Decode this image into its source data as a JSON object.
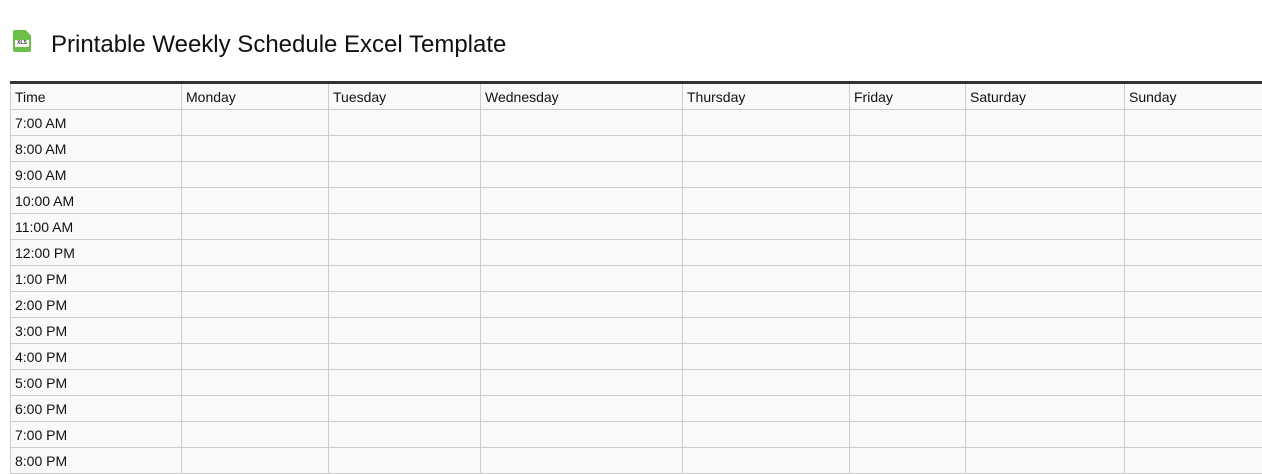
{
  "title": "Printable Weekly Schedule Excel Template",
  "icon": {
    "name": "xls-file-icon",
    "label": "XLS",
    "color": "#6cc04a"
  },
  "table": {
    "headers": [
      "Time",
      "Monday",
      "Tuesday",
      "Wednesday",
      "Thursday",
      "Friday",
      "Saturday",
      "Sunday"
    ],
    "times": [
      "7:00 AM",
      "8:00 AM",
      "9:00 AM",
      "10:00 AM",
      "11:00 AM",
      "12:00 PM",
      "1:00 PM",
      "2:00 PM",
      "3:00 PM",
      "4:00 PM",
      "5:00 PM",
      "6:00 PM",
      "7:00 PM",
      "8:00 PM"
    ]
  }
}
